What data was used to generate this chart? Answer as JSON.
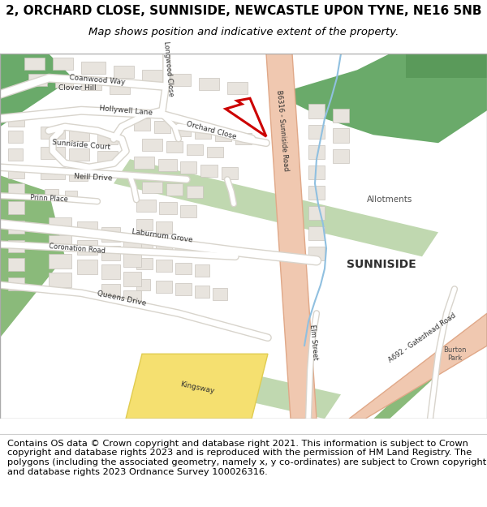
{
  "title": "2, ORCHARD CLOSE, SUNNISIDE, NEWCASTLE UPON TYNE, NE16 5NB",
  "subtitle": "Map shows position and indicative extent of the property.",
  "copyright": "Contains OS data © Crown copyright and database right 2021. This information is subject to Crown copyright and database rights 2023 and is reproduced with the permission of HM Land Registry. The polygons (including the associated geometry, namely x, y co-ordinates) are subject to Crown copyright and database rights 2023 Ordnance Survey 100026316.",
  "title_fontsize": 11,
  "subtitle_fontsize": 9.5,
  "copyright_fontsize": 8.2,
  "bg_color": "#ffffff",
  "map_bg": "#f8f6f2",
  "road_b6316_fill": "#f0c8b0",
  "road_b6316_edge": "#e0a888",
  "road_white_fill": "#ffffff",
  "road_white_edge": "#d8d4cc",
  "road_kingsway_fill": "#f5e070",
  "road_kingsway_edge": "#e0cc50",
  "building_fill": "#e8e4de",
  "building_edge": "#c8c4bc",
  "green_dark": "#6aaa6a",
  "green_medium": "#8aba7a",
  "green_light": "#c0d8b0",
  "stream_color": "#90c0e0",
  "plot_color": "#cc0000",
  "text_dark": "#303030",
  "text_mid": "#505050"
}
